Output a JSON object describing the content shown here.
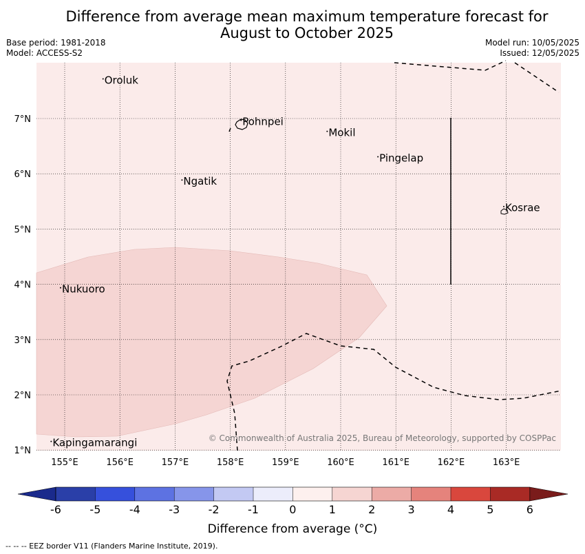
{
  "title": {
    "line1": "Difference from average mean maximum temperature forecast for",
    "line2": "August to October 2025"
  },
  "meta": {
    "base_period": "Base period: 1981-2018",
    "model": "Model: ACCESS-S2",
    "model_run": "Model run: 10/05/2025",
    "issued": "Issued: 12/05/2025"
  },
  "map": {
    "background_color": "#fbebea",
    "anomaly_region_color": "#f5d5d3",
    "longitude_ticks": [
      "155°E",
      "156°E",
      "157°E",
      "158°E",
      "159°E",
      "160°E",
      "161°E",
      "162°E",
      "163°E"
    ],
    "latitude_ticks": [
      "7°N",
      "6°N",
      "5°N",
      "4°N",
      "3°N",
      "2°N",
      "1°N"
    ],
    "places": [
      {
        "name": "Oroluk",
        "lon": 155.72,
        "lat": 7.63
      },
      {
        "name": "Pohnpei",
        "lon": 158.22,
        "lat": 6.88
      },
      {
        "name": "Mokil",
        "lon": 159.78,
        "lat": 6.68
      },
      {
        "name": "Pingelap",
        "lon": 160.7,
        "lat": 6.22
      },
      {
        "name": "Ngatik",
        "lon": 157.15,
        "lat": 5.8
      },
      {
        "name": "Kosrae",
        "lon": 162.98,
        "lat": 5.32
      },
      {
        "name": "Nukuoro",
        "lon": 154.95,
        "lat": 3.85
      },
      {
        "name": "Kapingamarangi",
        "lon": 154.78,
        "lat": 1.07
      }
    ],
    "copyright": "© Commonwealth of Australia 2025, Bureau of Meteorology, supported by COSPPac"
  },
  "colorbar": {
    "ticks": [
      "-6",
      "-5",
      "-4",
      "-3",
      "-2",
      "-1",
      "0",
      "1",
      "2",
      "3",
      "4",
      "5",
      "6"
    ],
    "colors": [
      "#1a2a8c",
      "#2a3fa8",
      "#3650dc",
      "#5d72e2",
      "#8695ea",
      "#c3c9f3",
      "#ecedfb",
      "#fdf0ee",
      "#f6d5d2",
      "#ecaba6",
      "#e5837c",
      "#d9473d",
      "#a92a25",
      "#7a1c1b"
    ],
    "label": "Difference from average (°C)"
  },
  "footer": "--  --  -- EEZ border V11 (Flanders Marine Institute, 2019)."
}
